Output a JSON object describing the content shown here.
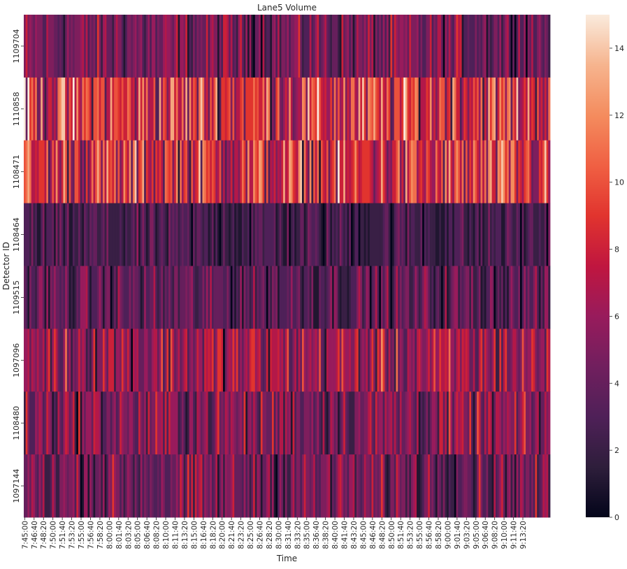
{
  "chart_data": {
    "type": "heatmap",
    "title": "Lane5 Volume",
    "xlabel": "Time",
    "ylabel": "Detector ID",
    "rows": [
      "1109704",
      "1110858",
      "1108471",
      "1108464",
      "1109515",
      "1097096",
      "1108480",
      "1097144"
    ],
    "x_tick_labels": [
      "7:45:00",
      "7:46:40",
      "7:48:20",
      "7:50:00",
      "7:51:40",
      "7:53:20",
      "7:55:00",
      "7:56:40",
      "7:58:20",
      "8:00:00",
      "8:01:40",
      "8:03:20",
      "8:05:00",
      "8:06:40",
      "8:08:20",
      "8:10:00",
      "8:11:40",
      "8:13:20",
      "8:15:00",
      "8:16:40",
      "8:18:20",
      "8:20:00",
      "8:21:40",
      "8:23:20",
      "8:25:00",
      "8:26:40",
      "8:28:20",
      "8:30:00",
      "8:31:40",
      "8:33:20",
      "8:35:00",
      "8:36:40",
      "8:38:20",
      "8:40:00",
      "8:41:40",
      "8:43:20",
      "8:45:00",
      "8:46:40",
      "8:48:20",
      "8:50:00",
      "8:51:40",
      "8:53:20",
      "8:55:00",
      "8:56:40",
      "8:58:20",
      "9:00:00",
      "9:01:40",
      "9:03:20",
      "9:05:00",
      "9:06:40",
      "9:08:20",
      "9:10:00",
      "9:11:40",
      "9:13:20"
    ],
    "x_start": "7:45:00",
    "interval_seconds": 20,
    "row_mean_volume": [
      4.5,
      8.5,
      8.0,
      2.5,
      3.5,
      6.0,
      5.0,
      4.5
    ],
    "value_range": [
      0,
      15
    ],
    "colorbar_ticks": [
      0,
      2,
      4,
      6,
      8,
      10,
      12,
      14
    ],
    "colormap": [
      "#03051a",
      "#2e1e3b",
      "#4f2058",
      "#711f5e",
      "#981b5c",
      "#c0163f",
      "#e1342e",
      "#f06043",
      "#f48c5e",
      "#f6b48e",
      "#faebdd"
    ]
  }
}
